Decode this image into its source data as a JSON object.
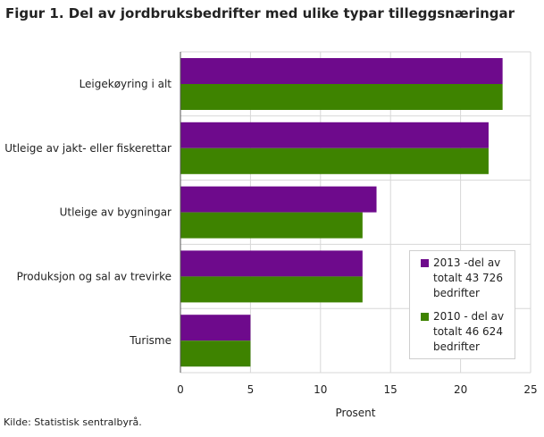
{
  "title": "Figur 1. Del av jordbruksbedrifter med ulike typar tilleggsnæringar",
  "source": "Kilde: Statistisk sentralbyrå.",
  "colors": {
    "series_2013": "#6e0a8c",
    "series_2010": "#3e8300",
    "grid": "#d7d7d7",
    "axis": "#555555"
  },
  "chart_data": {
    "type": "bar",
    "orientation": "horizontal",
    "categories": [
      "Leigekøyring i alt",
      "Utleige av jakt- eller fiskerettar",
      "Utleige av bygningar",
      "Produksjon og sal av trevirke",
      "Turisme"
    ],
    "series": [
      {
        "name": "2013 -del av totalt 43 726 bedrifter",
        "values": [
          23,
          22,
          14,
          13,
          5
        ]
      },
      {
        "name": "2010 - del av totalt 46 624 bedrifter",
        "values": [
          23,
          22,
          13,
          13,
          5
        ]
      }
    ],
    "xlabel": "Prosent",
    "ylabel": "",
    "xlim": [
      0,
      25
    ],
    "xticks": [
      "0",
      "5",
      "10",
      "15",
      "20",
      "25"
    ],
    "grid": true,
    "legend_position": "bottom-right"
  },
  "legend": {
    "items": [
      {
        "label": "2013 -del av totalt 43 726 bedrifter",
        "color": "#6e0a8c"
      },
      {
        "label": "2010 - del av totalt 46 624 bedrifter",
        "color": "#3e8300"
      }
    ]
  }
}
